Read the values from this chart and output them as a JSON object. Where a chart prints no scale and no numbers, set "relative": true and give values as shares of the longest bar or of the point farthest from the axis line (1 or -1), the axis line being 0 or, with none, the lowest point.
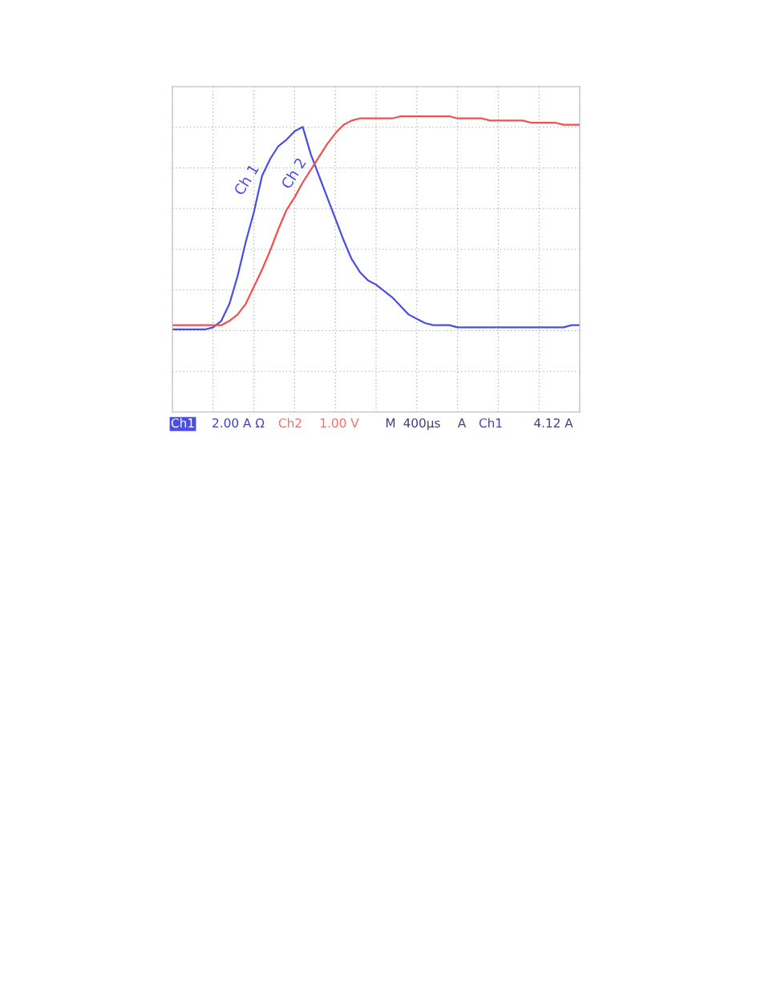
{
  "chart_data": {
    "type": "line",
    "relative": true,
    "grid": true,
    "categories": [
      null,
      null,
      null,
      null,
      null,
      null,
      null,
      null,
      null,
      null,
      null,
      null,
      null,
      null,
      null,
      null,
      null,
      null,
      null,
      null,
      null,
      null,
      null,
      null,
      null,
      null,
      null,
      null,
      null,
      null,
      null,
      null,
      null,
      null,
      null,
      null,
      null,
      null,
      null,
      null,
      null,
      null,
      null,
      null,
      null,
      null,
      null,
      null,
      null,
      null,
      null
    ],
    "series": [
      {
        "name": "Ch 1",
        "color": "#4b4ee6",
        "values": [
          0.0,
          0.0,
          0.0,
          0.0,
          0.0,
          0.01,
          0.04,
          0.12,
          0.25,
          0.41,
          0.55,
          0.72,
          0.8,
          0.86,
          0.89,
          0.93,
          0.95,
          0.82,
          0.72,
          0.62,
          0.52,
          0.42,
          0.33,
          0.27,
          0.23,
          0.21,
          0.18,
          0.15,
          0.11,
          0.07,
          0.05,
          0.03,
          0.02,
          0.02,
          0.02,
          0.01,
          0.01,
          0.01,
          0.01,
          0.01,
          0.01,
          0.01,
          0.01,
          0.01,
          0.01,
          0.01,
          0.01,
          0.01,
          0.01,
          0.02,
          0.02
        ]
      },
      {
        "name": "Ch 2",
        "color": "#f05050",
        "values": [
          0.02,
          0.02,
          0.02,
          0.02,
          0.02,
          0.02,
          0.02,
          0.04,
          0.07,
          0.12,
          0.2,
          0.28,
          0.37,
          0.47,
          0.56,
          0.62,
          0.69,
          0.75,
          0.81,
          0.87,
          0.92,
          0.96,
          0.98,
          0.99,
          0.99,
          0.99,
          0.99,
          0.99,
          1.0,
          1.0,
          1.0,
          1.0,
          1.0,
          1.0,
          1.0,
          0.99,
          0.99,
          0.99,
          0.99,
          0.98,
          0.98,
          0.98,
          0.98,
          0.98,
          0.97,
          0.97,
          0.97,
          0.97,
          0.96,
          0.96,
          0.96
        ]
      }
    ],
    "annotations": [
      "Ch1",
      "2.00 A Ω",
      "Ch2",
      "1.00 V",
      "M",
      "400µs",
      "A",
      "Ch1",
      "4.12 A"
    ]
  }
}
